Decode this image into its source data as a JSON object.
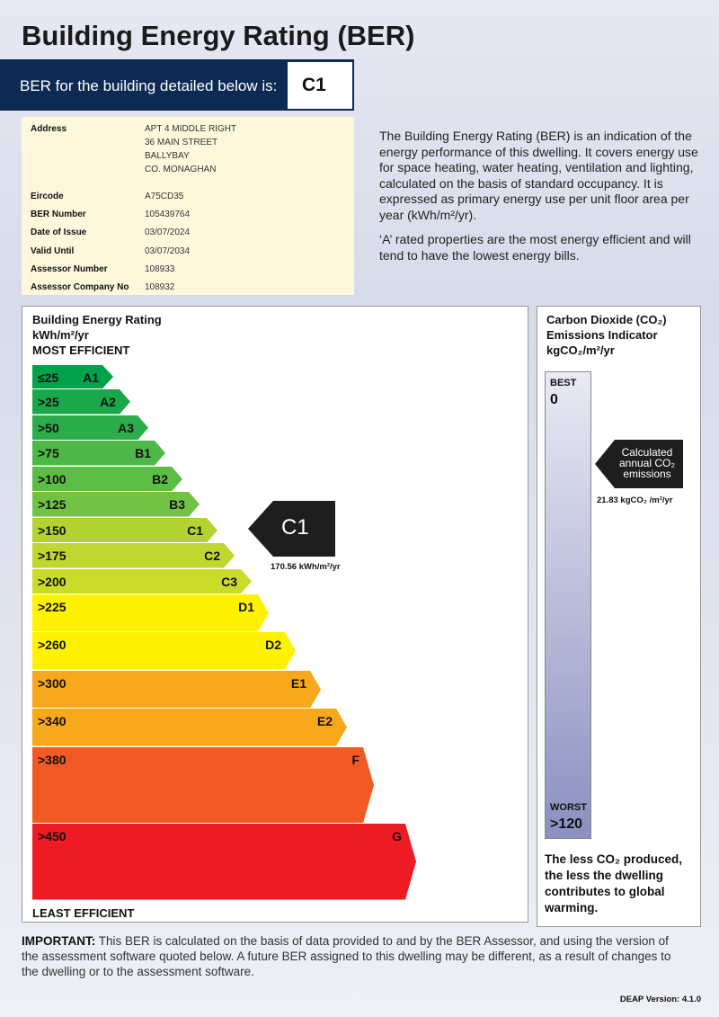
{
  "title": "Building Energy Rating (BER)",
  "banner": {
    "text": "BER for the building detailed below is:",
    "grade": "C1"
  },
  "details": {
    "address_label": "Address",
    "address": [
      "APT 4 MIDDLE RIGHT",
      "36 MAIN STREET",
      "BALLYBAY",
      "CO. MONAGHAN"
    ],
    "rows": [
      {
        "label": "Eircode",
        "value": "A75CD35"
      },
      {
        "label": "BER Number",
        "value": "105439764"
      },
      {
        "label": "Date of Issue",
        "value": "03/07/2024"
      },
      {
        "label": "Valid Until",
        "value": "03/07/2034"
      },
      {
        "label": "Assessor Number",
        "value": "108933"
      },
      {
        "label": "Assessor Company No",
        "value": "108932"
      }
    ]
  },
  "intro": [
    "The Building Energy Rating (BER) is an indication of the energy performance of this dwelling.  It covers energy use for space heating, water heating, ventilation and lighting, calculated on the basis of standard occupancy. It is expressed as primary energy use per unit floor area per year (kWh/m²/yr).",
    "‘A’ rated properties are the most energy efficient and will tend to have the lowest energy bills."
  ],
  "scale": {
    "heading": "Building Energy Rating",
    "unit": "kWh/m²/yr",
    "top": "MOST EFFICIENT",
    "bottom": "LEAST EFFICIENT",
    "bands": [
      {
        "range": "≤25",
        "grade": "A1",
        "color": "#00a14b"
      },
      {
        "range": ">25",
        "grade": "A2",
        "color": "#19a84a"
      },
      {
        "range": ">50",
        "grade": "A3",
        "color": "#2aad4a"
      },
      {
        "range": ">75",
        "grade": "B1",
        "color": "#4db848"
      },
      {
        "range": ">100",
        "grade": "B2",
        "color": "#5cbd46"
      },
      {
        "range": ">125",
        "grade": "B3",
        "color": "#72c344"
      },
      {
        "range": ">150",
        "grade": "C1",
        "color": "#b3d335"
      },
      {
        "range": ">175",
        "grade": "C2",
        "color": "#bfd730"
      },
      {
        "range": ">200",
        "grade": "C3",
        "color": "#cbdb2a"
      },
      {
        "range": ">225",
        "grade": "D1",
        "color": "#fff200"
      },
      {
        "range": ">260",
        "grade": "D2",
        "color": "#fff200"
      },
      {
        "range": ">300",
        "grade": "E1",
        "color": "#f7a81b"
      },
      {
        "range": ">340",
        "grade": "E2",
        "color": "#f7a81b"
      },
      {
        "range": ">380",
        "grade": "F",
        "color": "#f15a24"
      },
      {
        "range": ">450",
        "grade": "G",
        "color": "#ed1c24"
      }
    ]
  },
  "rating": {
    "grade": "C1",
    "value": "170.56 kWh/m²/yr"
  },
  "co2": {
    "heading1": "Carbon Dioxide (CO₂)",
    "heading2": "Emissions Indicator",
    "unit": "kgCO₂/m²/yr",
    "best_label": "BEST",
    "best": "0",
    "worst_label": "WORST",
    "worst": ">120",
    "arrow_text": [
      "Calculated",
      "annual CO₂",
      "emissions"
    ],
    "value": "21.83 kgCO₂ /m²/yr",
    "note": "The less CO₂ produced, the less the dwelling contributes to global warming."
  },
  "footer": {
    "important": "IMPORTANT:",
    "text": " This BER is calculated on the basis of data provided to and by the BER Assessor, and using the version of the assessment software quoted below.  A future BER assigned to this dwelling may be different, as a result of changes to the dwelling or to the assessment software."
  },
  "deap": "DEAP Version: 4.1.0"
}
